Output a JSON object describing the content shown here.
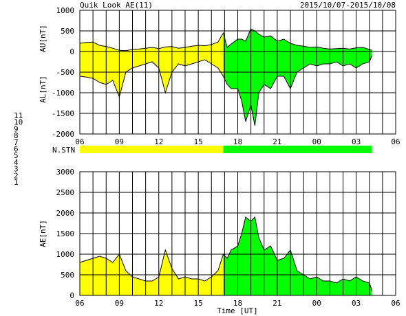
{
  "chart_data": [
    {
      "type": "area",
      "title": "Quik Look AE(11)",
      "date_range": "2015/10/07-2015/10/08",
      "ylabel_upper": "AU[nT]",
      "ylabel_lower": "AL[nT]",
      "ylim": [
        -2000,
        1000
      ],
      "yticks": [
        "1000",
        "500",
        "0",
        "-500",
        "-1000",
        "-1500",
        "-2000"
      ],
      "x_ticks": [
        "06",
        "09",
        "12",
        "15",
        "18",
        "21",
        "00",
        "03",
        "06"
      ],
      "x_range_hours": [
        6,
        30
      ],
      "data_end_hour": 28.2,
      "color_change_hour": 16.9,
      "colors": {
        "early": "#ffff00",
        "late": "#00ff00"
      },
      "series": [
        {
          "name": "AU",
          "x": [
            6.0,
            6.5,
            7.0,
            7.5,
            8.0,
            8.5,
            9.0,
            9.5,
            10.0,
            10.5,
            11.0,
            11.5,
            12.0,
            12.5,
            13.0,
            13.5,
            14.0,
            14.5,
            15.0,
            15.5,
            16.0,
            16.5,
            16.9,
            17.2,
            17.5,
            18.0,
            18.3,
            18.6,
            19.0,
            19.3,
            19.6,
            20.0,
            20.5,
            21.0,
            21.5,
            22.0,
            22.5,
            23.0,
            23.5,
            24.0,
            24.5,
            25.0,
            25.5,
            26.0,
            26.5,
            27.0,
            27.5,
            28.0,
            28.2
          ],
          "values": [
            200,
            220,
            230,
            150,
            120,
            80,
            30,
            20,
            50,
            60,
            80,
            100,
            70,
            110,
            120,
            80,
            100,
            130,
            150,
            140,
            170,
            230,
            450,
            100,
            180,
            300,
            300,
            250,
            550,
            500,
            420,
            350,
            380,
            250,
            300,
            200,
            150,
            130,
            100,
            110,
            80,
            60,
            70,
            80,
            60,
            90,
            100,
            50,
            30
          ]
        },
        {
          "name": "AL",
          "x": [
            6.0,
            6.5,
            7.0,
            7.5,
            8.0,
            8.5,
            9.0,
            9.5,
            10.0,
            10.5,
            11.0,
            11.5,
            12.0,
            12.5,
            13.0,
            13.5,
            14.0,
            14.5,
            15.0,
            15.5,
            16.0,
            16.5,
            16.9,
            17.2,
            17.5,
            18.0,
            18.3,
            18.6,
            19.0,
            19.3,
            19.6,
            20.0,
            20.5,
            21.0,
            21.5,
            22.0,
            22.5,
            23.0,
            23.5,
            24.0,
            24.5,
            25.0,
            25.5,
            26.0,
            26.5,
            27.0,
            27.5,
            28.0,
            28.2
          ],
          "values": [
            -600,
            -620,
            -650,
            -750,
            -800,
            -700,
            -1100,
            -500,
            -400,
            -350,
            -300,
            -250,
            -400,
            -1000,
            -500,
            -300,
            -350,
            -300,
            -250,
            -200,
            -300,
            -400,
            -600,
            -800,
            -900,
            -900,
            -1200,
            -1700,
            -1300,
            -1800,
            -1000,
            -800,
            -900,
            -600,
            -600,
            -900,
            -500,
            -400,
            -300,
            -350,
            -300,
            -300,
            -250,
            -350,
            -300,
            -400,
            -300,
            -250,
            -100
          ]
        }
      ],
      "legend": "N.STN",
      "station_numbers": [
        {
          "label": "11",
          "color": "#00d8d8"
        },
        {
          "label": "10",
          "color": "#ff00ff"
        },
        {
          "label": "9",
          "color": "#0000cc"
        },
        {
          "label": "8",
          "color": "#ffff00"
        },
        {
          "label": "7",
          "color": "#00c000"
        },
        {
          "label": "6",
          "color": "#e00000"
        },
        {
          "label": "5",
          "color": "#ffffff"
        },
        {
          "label": "4",
          "color": "#a0a0a0"
        },
        {
          "label": "3",
          "color": "#00a0a0"
        },
        {
          "label": "2",
          "color": "#a000a0"
        },
        {
          "label": "1",
          "color": "#0000a0"
        }
      ]
    },
    {
      "type": "area",
      "ylabel": "AE[nT]",
      "xlabel": "Time [UT]",
      "ylim": [
        0,
        3000
      ],
      "yticks": [
        "3000",
        "2500",
        "2000",
        "1500",
        "1000",
        "500",
        "0"
      ],
      "x_ticks": [
        "06",
        "09",
        "12",
        "15",
        "18",
        "21",
        "00",
        "03",
        "06"
      ],
      "x_range_hours": [
        6,
        30
      ],
      "series": [
        {
          "name": "AE",
          "x": [
            6.0,
            6.5,
            7.0,
            7.5,
            8.0,
            8.5,
            9.0,
            9.5,
            10.0,
            10.5,
            11.0,
            11.5,
            12.0,
            12.5,
            13.0,
            13.5,
            14.0,
            14.5,
            15.0,
            15.5,
            16.0,
            16.5,
            16.9,
            17.2,
            17.5,
            18.0,
            18.3,
            18.6,
            19.0,
            19.3,
            19.6,
            20.0,
            20.5,
            21.0,
            21.5,
            22.0,
            22.5,
            23.0,
            23.5,
            24.0,
            24.5,
            25.0,
            25.5,
            26.0,
            26.5,
            27.0,
            27.5,
            28.0,
            28.2
          ],
          "values": [
            800,
            850,
            900,
            950,
            900,
            800,
            1000,
            600,
            450,
            400,
            350,
            350,
            450,
            1100,
            650,
            400,
            450,
            400,
            400,
            350,
            450,
            600,
            1000,
            900,
            1100,
            1200,
            1500,
            1900,
            1800,
            1900,
            1400,
            1100,
            1200,
            850,
            900,
            1100,
            600,
            500,
            400,
            450,
            350,
            350,
            300,
            400,
            350,
            450,
            350,
            300,
            120
          ]
        }
      ]
    }
  ]
}
